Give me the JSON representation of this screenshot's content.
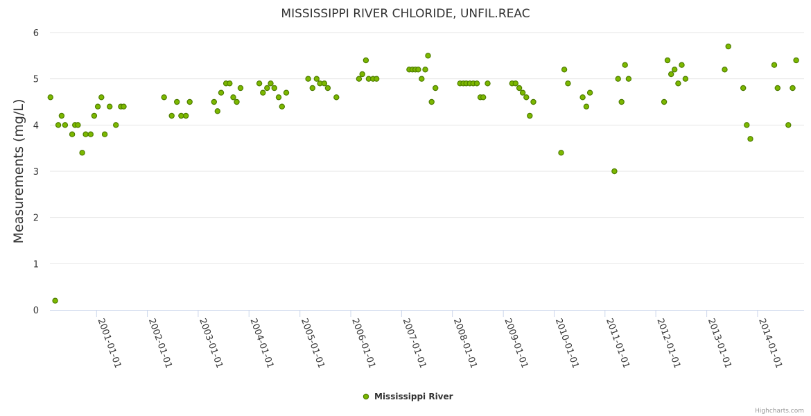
{
  "chart_data": {
    "type": "scatter",
    "title": "MISSISSIPPI RIVER CHLORIDE, UNFIL.REAC",
    "ylabel": "Measurements (mg/L)",
    "xlabel": "",
    "ylim": [
      0,
      6
    ],
    "yticks": [
      "0",
      "1",
      "2",
      "3",
      "4",
      "5",
      "6"
    ],
    "xticks": [
      "2001-01-01",
      "2002-01-01",
      "2003-01-01",
      "2004-01-01",
      "2005-01-01",
      "2006-01-01",
      "2007-01-01",
      "2008-01-01",
      "2009-01-01",
      "2010-01-01",
      "2011-01-01",
      "2012-01-01",
      "2013-01-01",
      "2014-01-01"
    ],
    "xlim": [
      "2000-02-01",
      "2014-12-01"
    ],
    "grid": true,
    "legend_position": "bottom-center",
    "colors": {
      "marker_fill": "#7cb800",
      "marker_stroke": "#4e7d00"
    },
    "series": [
      {
        "name": "Mississippi River",
        "points": [
          [
            "2000-02-05",
            4.6
          ],
          [
            "2000-03-10",
            0.2
          ],
          [
            "2000-04-01",
            4.0
          ],
          [
            "2000-04-25",
            4.2
          ],
          [
            "2000-05-20",
            4.0
          ],
          [
            "2000-07-10",
            3.8
          ],
          [
            "2000-07-30",
            4.0
          ],
          [
            "2000-08-20",
            4.0
          ],
          [
            "2000-09-20",
            3.4
          ],
          [
            "2000-10-15",
            3.8
          ],
          [
            "2000-11-20",
            3.8
          ],
          [
            "2000-12-15",
            4.2
          ],
          [
            "2001-01-10",
            4.4
          ],
          [
            "2001-02-05",
            4.6
          ],
          [
            "2001-03-01",
            3.8
          ],
          [
            "2001-04-05",
            4.4
          ],
          [
            "2001-05-20",
            4.0
          ],
          [
            "2001-06-25",
            4.4
          ],
          [
            "2001-07-15",
            4.4
          ],
          [
            "2002-05-01",
            4.6
          ],
          [
            "2002-06-25",
            4.2
          ],
          [
            "2002-08-01",
            4.5
          ],
          [
            "2002-09-01",
            4.2
          ],
          [
            "2002-10-05",
            4.2
          ],
          [
            "2002-11-01",
            4.5
          ],
          [
            "2003-04-25",
            4.5
          ],
          [
            "2003-05-20",
            4.3
          ],
          [
            "2003-06-15",
            4.7
          ],
          [
            "2003-07-20",
            4.9
          ],
          [
            "2003-08-15",
            4.9
          ],
          [
            "2003-09-10",
            4.6
          ],
          [
            "2003-10-05",
            4.5
          ],
          [
            "2003-11-01",
            4.8
          ],
          [
            "2004-03-15",
            4.9
          ],
          [
            "2004-04-10",
            4.7
          ],
          [
            "2004-05-10",
            4.8
          ],
          [
            "2004-06-05",
            4.9
          ],
          [
            "2004-07-01",
            4.8
          ],
          [
            "2004-08-01",
            4.6
          ],
          [
            "2004-08-25",
            4.4
          ],
          [
            "2004-09-25",
            4.7
          ],
          [
            "2005-03-01",
            5.0
          ],
          [
            "2005-04-01",
            4.8
          ],
          [
            "2005-05-01",
            5.0
          ],
          [
            "2005-05-25",
            4.9
          ],
          [
            "2005-06-25",
            4.9
          ],
          [
            "2005-07-20",
            4.8
          ],
          [
            "2005-09-20",
            4.6
          ],
          [
            "2006-03-01",
            5.0
          ],
          [
            "2006-03-25",
            5.1
          ],
          [
            "2006-04-20",
            5.4
          ],
          [
            "2006-05-10",
            5.0
          ],
          [
            "2006-06-10",
            5.0
          ],
          [
            "2006-07-05",
            5.0
          ],
          [
            "2007-02-25",
            5.2
          ],
          [
            "2007-03-20",
            5.2
          ],
          [
            "2007-04-10",
            5.2
          ],
          [
            "2007-05-01",
            5.2
          ],
          [
            "2007-05-25",
            5.0
          ],
          [
            "2007-06-20",
            5.2
          ],
          [
            "2007-07-10",
            5.5
          ],
          [
            "2007-08-05",
            4.5
          ],
          [
            "2007-09-01",
            4.8
          ],
          [
            "2008-02-25",
            4.9
          ],
          [
            "2008-03-20",
            4.9
          ],
          [
            "2008-04-10",
            4.9
          ],
          [
            "2008-05-05",
            4.9
          ],
          [
            "2008-05-30",
            4.9
          ],
          [
            "2008-06-25",
            4.9
          ],
          [
            "2008-07-20",
            4.6
          ],
          [
            "2008-08-10",
            4.6
          ],
          [
            "2008-09-10",
            4.9
          ],
          [
            "2009-03-05",
            4.9
          ],
          [
            "2009-03-30",
            4.9
          ],
          [
            "2009-04-25",
            4.8
          ],
          [
            "2009-05-20",
            4.7
          ],
          [
            "2009-06-15",
            4.6
          ],
          [
            "2009-07-10",
            4.2
          ],
          [
            "2009-08-05",
            4.5
          ],
          [
            "2010-02-20",
            3.4
          ],
          [
            "2010-03-15",
            5.2
          ],
          [
            "2010-04-10",
            4.9
          ],
          [
            "2010-07-25",
            4.6
          ],
          [
            "2010-08-20",
            4.4
          ],
          [
            "2010-09-15",
            4.7
          ],
          [
            "2011-03-10",
            3.0
          ],
          [
            "2011-04-05",
            5.0
          ],
          [
            "2011-04-30",
            4.5
          ],
          [
            "2011-05-25",
            5.3
          ],
          [
            "2011-06-20",
            5.0
          ],
          [
            "2012-03-01",
            4.5
          ],
          [
            "2012-03-25",
            5.4
          ],
          [
            "2012-04-20",
            5.1
          ],
          [
            "2012-05-15",
            5.2
          ],
          [
            "2012-06-10",
            4.9
          ],
          [
            "2012-07-05",
            5.3
          ],
          [
            "2012-08-01",
            5.0
          ],
          [
            "2013-05-10",
            5.2
          ],
          [
            "2013-06-05",
            5.7
          ],
          [
            "2013-09-20",
            4.8
          ],
          [
            "2013-10-15",
            4.0
          ],
          [
            "2013-11-10",
            3.7
          ],
          [
            "2014-05-01",
            5.3
          ],
          [
            "2014-05-25",
            4.8
          ],
          [
            "2014-08-10",
            4.0
          ],
          [
            "2014-09-10",
            4.8
          ],
          [
            "2014-10-05",
            5.4
          ]
        ]
      }
    ]
  },
  "credits": "Highcharts.com"
}
